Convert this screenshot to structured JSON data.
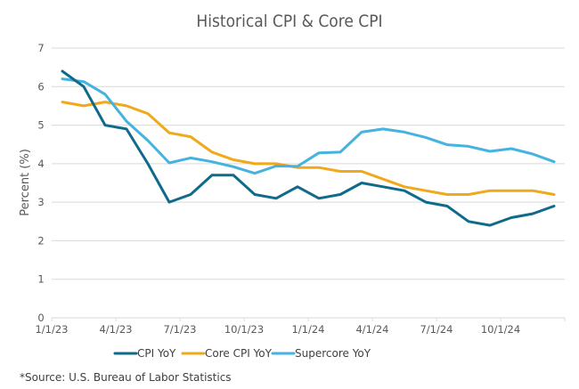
{
  "chart_data": {
    "type": "line",
    "title": "Historical CPI & Core CPI",
    "xlabel": "",
    "ylabel": "Percent (%)",
    "ylim": [
      0,
      7
    ],
    "yticks": [
      0,
      1,
      2,
      3,
      4,
      5,
      6,
      7
    ],
    "grid": true,
    "legend_position": "bottom",
    "x": [
      "Jan-23",
      "Feb-23",
      "Mar-23",
      "Apr-23",
      "May-23",
      "Jun-23",
      "Jul-23",
      "Aug-23",
      "Sep-23",
      "Oct-23",
      "Nov-23",
      "Dec-23",
      "Jan-24",
      "Feb-24",
      "Mar-24",
      "Apr-24",
      "May-24",
      "Jun-24",
      "Jul-24",
      "Aug-24",
      "Sep-24",
      "Oct-24",
      "Nov-24",
      "Dec-24"
    ],
    "xtick_labels": [
      "1/1/23",
      "4/1/23",
      "7/1/23",
      "10/1/23",
      "1/1/24",
      "4/1/24",
      "7/1/24",
      "10/1/24"
    ],
    "series": [
      {
        "name": "CPI YoY",
        "color": "#0f6a8b",
        "values": [
          6.4,
          6.0,
          5.0,
          4.9,
          4.0,
          3.0,
          3.2,
          3.7,
          3.7,
          3.2,
          3.1,
          3.4,
          3.1,
          3.2,
          3.5,
          3.4,
          3.3,
          3.0,
          2.9,
          2.5,
          2.4,
          2.6,
          2.7,
          2.9
        ]
      },
      {
        "name": "Core CPI YoY",
        "color": "#f0a91a",
        "values": [
          5.6,
          5.5,
          5.6,
          5.5,
          5.3,
          4.8,
          4.7,
          4.3,
          4.1,
          4.0,
          4.0,
          3.9,
          3.9,
          3.8,
          3.8,
          3.6,
          3.4,
          3.3,
          3.2,
          3.2,
          3.3,
          3.3,
          3.3,
          3.2
        ]
      },
      {
        "name": "Supercore YoY",
        "color": "#45b2df",
        "values": [
          6.2,
          6.13,
          5.8,
          5.1,
          4.6,
          4.02,
          4.15,
          4.05,
          3.92,
          3.75,
          3.94,
          3.93,
          4.28,
          4.3,
          4.82,
          4.9,
          4.82,
          4.68,
          4.49,
          4.45,
          4.32,
          4.39,
          4.25,
          4.05
        ]
      }
    ]
  },
  "footnote": "*Source: U.S. Bureau of Labor Statistics"
}
